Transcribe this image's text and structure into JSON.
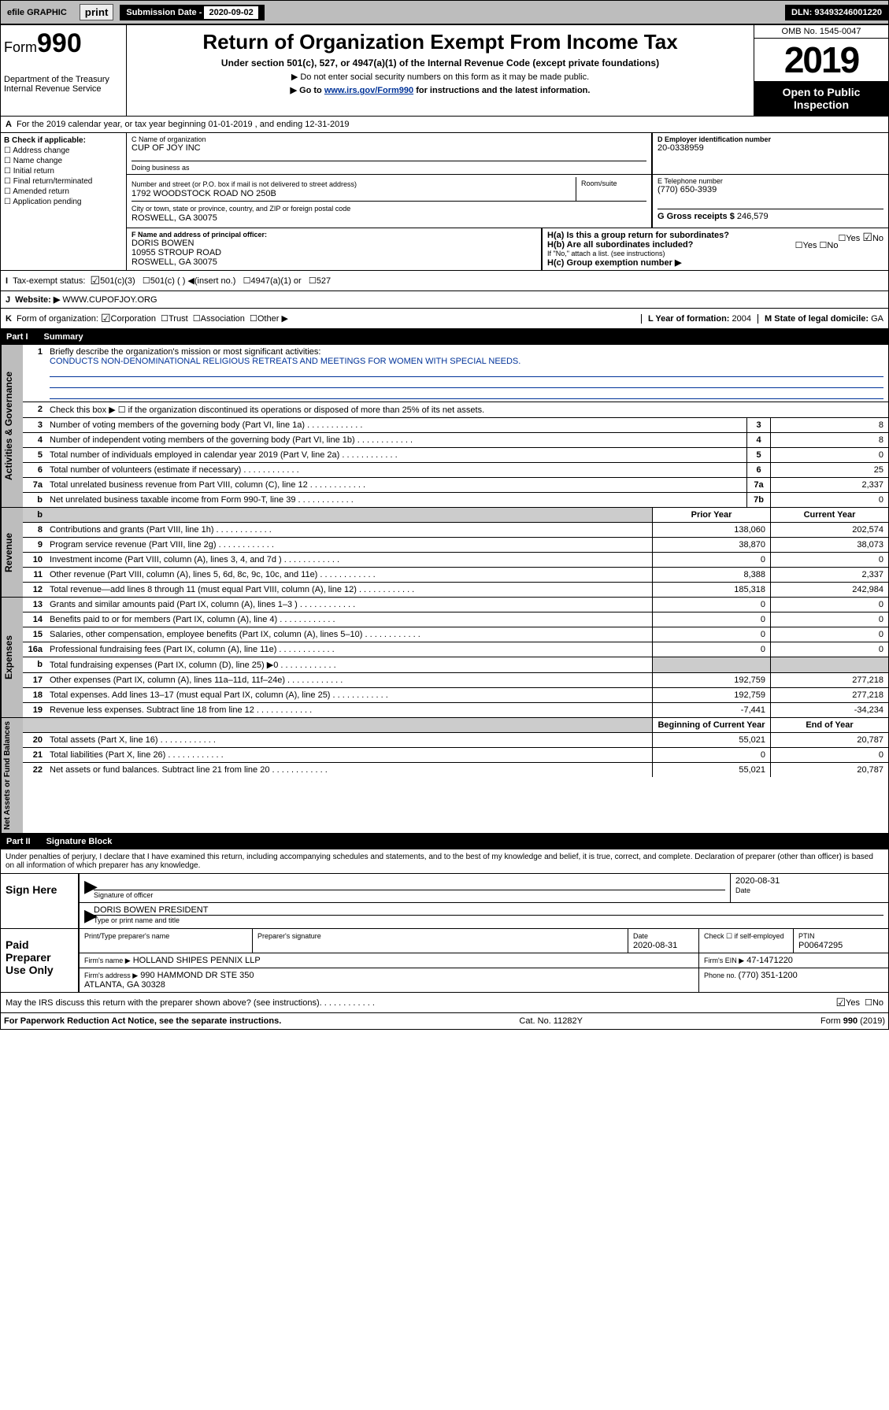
{
  "topbar": {
    "efile": "efile GRAPHIC",
    "print": "print",
    "subdate_label": "Submission Date - ",
    "subdate_val": "2020-09-02",
    "dln": "DLN: 93493246001220"
  },
  "header": {
    "form_prefix": "Form",
    "form_num": "990",
    "title": "Return of Organization Exempt From Income Tax",
    "subtitle": "Under section 501(c), 527, or 4947(a)(1) of the Internal Revenue Code (except private foundations)",
    "note1": "▶ Do not enter social security numbers on this form as it may be made public.",
    "note2_pre": "▶ Go to ",
    "note2_link": "www.irs.gov/Form990",
    "note2_post": " for instructions and the latest information.",
    "dept": "Department of the Treasury\nInternal Revenue Service",
    "omb": "OMB No. 1545-0047",
    "year": "2019",
    "open": "Open to Public Inspection"
  },
  "blockA": {
    "line_a": "For the 2019 calendar year, or tax year beginning 01-01-2019    , and ending 12-31-2019",
    "b_label": "B Check if applicable:",
    "checks": [
      "Address change",
      "Name change",
      "Initial return",
      "Final return/terminated",
      "Amended return",
      "Application pending"
    ],
    "c_label": "C Name of organization",
    "org_name": "CUP OF JOY INC",
    "dba_label": "Doing business as",
    "addr_label": "Number and street (or P.O. box if mail is not delivered to street address)",
    "room_label": "Room/suite",
    "addr": "1792 WOODSTOCK ROAD NO 250B",
    "city_label": "City or town, state or province, country, and ZIP or foreign postal code",
    "city": "ROSWELL, GA  30075",
    "d_label": "D Employer identification number",
    "ein": "20-0338959",
    "e_label": "E Telephone number",
    "phone": "(770) 650-3939",
    "g_label": "G Gross receipts $ ",
    "g_val": "246,579",
    "f_label": "F  Name and address of principal officer:",
    "officer": "DORIS BOWEN\n10955 STROUP ROAD\nROSWELL, GA  30075",
    "ha": "H(a)  Is this a group return for subordinates?",
    "hb": "H(b)  Are all subordinates included?",
    "hb_note": "If \"No,\" attach a list. (see instructions)",
    "hc": "H(c)  Group exemption number ▶",
    "yes": "Yes",
    "no": "No"
  },
  "lineI": {
    "label": "I",
    "text": "Tax-exempt status:",
    "opts": [
      "501(c)(3)",
      "501(c) (   ) ◀(insert no.)",
      "4947(a)(1) or",
      "527"
    ]
  },
  "lineJ": {
    "label": "J",
    "text": "Website: ▶",
    "val": "WWW.CUPOFJOY.ORG"
  },
  "lineK": {
    "label": "K",
    "text": "Form of organization:",
    "opts": [
      "Corporation",
      "Trust",
      "Association",
      "Other ▶"
    ],
    "l": "L Year of formation: ",
    "l_val": "2004",
    "m": "M State of legal domicile: ",
    "m_val": "GA"
  },
  "part1": {
    "num": "Part I",
    "title": "Summary"
  },
  "summary": {
    "q1": "Briefly describe the organization's mission or most significant activities:",
    "mission": "CONDUCTS NON-DENOMINATIONAL RELIGIOUS RETREATS AND MEETINGS FOR WOMEN WITH SPECIAL NEEDS.",
    "q2": "Check this box ▶ ☐  if the organization discontinued its operations or disposed of more than 25% of its net assets.",
    "rows_gov": [
      {
        "n": "3",
        "t": "Number of voting members of the governing body (Part VI, line 1a)",
        "num": "3",
        "v": "8"
      },
      {
        "n": "4",
        "t": "Number of independent voting members of the governing body (Part VI, line 1b)",
        "num": "4",
        "v": "8"
      },
      {
        "n": "5",
        "t": "Total number of individuals employed in calendar year 2019 (Part V, line 2a)",
        "num": "5",
        "v": "0"
      },
      {
        "n": "6",
        "t": "Total number of volunteers (estimate if necessary)",
        "num": "6",
        "v": "25"
      },
      {
        "n": "7a",
        "t": "Total unrelated business revenue from Part VIII, column (C), line 12",
        "num": "7a",
        "v": "2,337"
      },
      {
        "n": "b",
        "t": "Net unrelated business taxable income from Form 990-T, line 39",
        "num": "7b",
        "v": "0"
      }
    ],
    "th_prior": "Prior Year",
    "th_current": "Current Year",
    "rows_rev": [
      {
        "n": "8",
        "t": "Contributions and grants (Part VIII, line 1h)",
        "p": "138,060",
        "c": "202,574"
      },
      {
        "n": "9",
        "t": "Program service revenue (Part VIII, line 2g)",
        "p": "38,870",
        "c": "38,073"
      },
      {
        "n": "10",
        "t": "Investment income (Part VIII, column (A), lines 3, 4, and 7d )",
        "p": "0",
        "c": "0"
      },
      {
        "n": "11",
        "t": "Other revenue (Part VIII, column (A), lines 5, 6d, 8c, 9c, 10c, and 11e)",
        "p": "8,388",
        "c": "2,337"
      },
      {
        "n": "12",
        "t": "Total revenue—add lines 8 through 11 (must equal Part VIII, column (A), line 12)",
        "p": "185,318",
        "c": "242,984"
      }
    ],
    "rows_exp": [
      {
        "n": "13",
        "t": "Grants and similar amounts paid (Part IX, column (A), lines 1–3 )",
        "p": "0",
        "c": "0"
      },
      {
        "n": "14",
        "t": "Benefits paid to or for members (Part IX, column (A), line 4)",
        "p": "0",
        "c": "0"
      },
      {
        "n": "15",
        "t": "Salaries, other compensation, employee benefits (Part IX, column (A), lines 5–10)",
        "p": "0",
        "c": "0"
      },
      {
        "n": "16a",
        "t": "Professional fundraising fees (Part IX, column (A), line 11e)",
        "p": "0",
        "c": "0"
      },
      {
        "n": "b",
        "t": "Total fundraising expenses (Part IX, column (D), line 25) ▶0",
        "p": "",
        "c": "",
        "gray": true
      },
      {
        "n": "17",
        "t": "Other expenses (Part IX, column (A), lines 11a–11d, 11f–24e)",
        "p": "192,759",
        "c": "277,218"
      },
      {
        "n": "18",
        "t": "Total expenses. Add lines 13–17 (must equal Part IX, column (A), line 25)",
        "p": "192,759",
        "c": "277,218"
      },
      {
        "n": "19",
        "t": "Revenue less expenses. Subtract line 18 from line 12",
        "p": "-7,441",
        "c": "-34,234"
      }
    ],
    "th_begin": "Beginning of Current Year",
    "th_end": "End of Year",
    "rows_net": [
      {
        "n": "20",
        "t": "Total assets (Part X, line 16)",
        "p": "55,021",
        "c": "20,787"
      },
      {
        "n": "21",
        "t": "Total liabilities (Part X, line 26)",
        "p": "0",
        "c": "0"
      },
      {
        "n": "22",
        "t": "Net assets or fund balances. Subtract line 21 from line 20",
        "p": "55,021",
        "c": "20,787"
      }
    ],
    "sidelabels": {
      "gov": "Activities & Governance",
      "rev": "Revenue",
      "exp": "Expenses",
      "net": "Net Assets or Fund Balances"
    }
  },
  "part2": {
    "num": "Part II",
    "title": "Signature Block",
    "perjury": "Under penalties of perjury, I declare that I have examined this return, including accompanying schedules and statements, and to the best of my knowledge and belief, it is true, correct, and complete. Declaration of preparer (other than officer) is based on all information of which preparer has any knowledge."
  },
  "sign": {
    "here": "Sign Here",
    "sig_officer": "Signature of officer",
    "date_lbl": "Date",
    "date": "2020-08-31",
    "name": "DORIS BOWEN  PRESIDENT",
    "name_lbl": "Type or print name and title",
    "paid": "Paid Preparer Use Only",
    "prep_name_lbl": "Print/Type preparer's name",
    "prep_sig_lbl": "Preparer's signature",
    "prep_date": "2020-08-31",
    "check_self": "Check ☐ if self-employed",
    "ptin_lbl": "PTIN",
    "ptin": "P00647295",
    "firm_name_lbl": "Firm's name    ▶",
    "firm_name": "HOLLAND SHIPES PENNIX LLP",
    "firm_ein_lbl": "Firm's EIN ▶",
    "firm_ein": "47-1471220",
    "firm_addr_lbl": "Firm's address ▶",
    "firm_addr": "990 HAMMOND DR STE 350\nATLANTA, GA  30328",
    "firm_phone_lbl": "Phone no. ",
    "firm_phone": "(770) 351-1200",
    "discuss": "May the IRS discuss this return with the preparer shown above? (see instructions)"
  },
  "footer": {
    "f1": "For Paperwork Reduction Act Notice, see the separate instructions.",
    "f2": "Cat. No. 11282Y",
    "f3": "Form 990 (2019)"
  },
  "colors": {
    "link": "#003399",
    "gray_bg": "#bdbdbd"
  }
}
